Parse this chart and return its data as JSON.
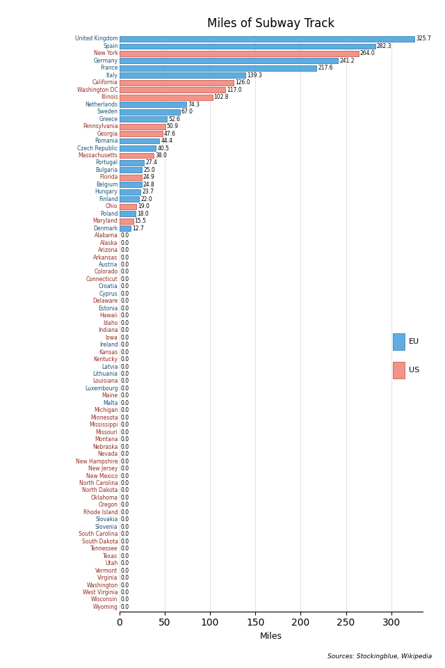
{
  "title": "Miles of Subway Track",
  "xlabel": "Miles",
  "source": "Sources: Stockingblue, Wikipedia",
  "categories": [
    "United Kingdom",
    "Spain",
    "New York",
    "Germany",
    "France",
    "Italy",
    "California",
    "Washington DC",
    "Illinois",
    "Netherlands",
    "Sweden",
    "Greece",
    "Pennsylvania",
    "Georgia",
    "Romania",
    "Czech Republic",
    "Massachusetts",
    "Portugal",
    "Bulgaria",
    "Florida",
    "Belgium",
    "Hungary",
    "Finland",
    "Ohio",
    "Poland",
    "Maryland",
    "Denmark",
    "Alabama",
    "Alaska",
    "Arizona",
    "Arkansas",
    "Austria",
    "Colorado",
    "Connecticut",
    "Croatia",
    "Cyprus",
    "Delaware",
    "Estonia",
    "Hawaii",
    "Idaho",
    "Indiana",
    "Iowa",
    "Ireland",
    "Kansas",
    "Kentucky",
    "Latvia",
    "Lithuania",
    "Louisiana",
    "Luxembourg",
    "Maine",
    "Malta",
    "Michigan",
    "Minnesota",
    "Mississippi",
    "Missouri",
    "Montana",
    "Nebraska",
    "Nevada",
    "New Hampshire",
    "New Jersey",
    "New Mexico",
    "North Carolina",
    "North Dakota",
    "Oklahoma",
    "Oregon",
    "Rhode Island",
    "Slovakia",
    "Slovenia",
    "South Carolina",
    "South Dakota",
    "Tennessee",
    "Texas",
    "Utah",
    "Vermont",
    "Virginia",
    "Washington",
    "West Virginia",
    "Wisconsin",
    "Wyoming"
  ],
  "values": [
    325.7,
    282.3,
    264.0,
    241.2,
    217.6,
    139.3,
    126.0,
    117.0,
    102.8,
    74.3,
    67.0,
    52.6,
    50.9,
    47.6,
    44.4,
    40.5,
    38.0,
    27.4,
    25.0,
    24.9,
    24.8,
    23.7,
    22.0,
    19.0,
    18.0,
    15.5,
    12.7,
    0.0,
    0.0,
    0.0,
    0.0,
    0.0,
    0.0,
    0.0,
    0.0,
    0.0,
    0.0,
    0.0,
    0.0,
    0.0,
    0.0,
    0.0,
    0.0,
    0.0,
    0.0,
    0.0,
    0.0,
    0.0,
    0.0,
    0.0,
    0.0,
    0.0,
    0.0,
    0.0,
    0.0,
    0.0,
    0.0,
    0.0,
    0.0,
    0.0,
    0.0,
    0.0,
    0.0,
    0.0,
    0.0,
    0.0,
    0.0,
    0.0,
    0.0,
    0.0,
    0.0,
    0.0,
    0.0,
    0.0,
    0.0,
    0.0,
    0.0,
    0.0,
    0.0
  ],
  "is_eu": [
    true,
    true,
    false,
    true,
    true,
    true,
    false,
    false,
    false,
    true,
    true,
    true,
    false,
    false,
    true,
    true,
    false,
    true,
    true,
    false,
    true,
    true,
    true,
    false,
    true,
    false,
    true,
    false,
    false,
    false,
    false,
    true,
    false,
    false,
    true,
    true,
    false,
    true,
    false,
    false,
    false,
    false,
    true,
    false,
    false,
    true,
    true,
    false,
    true,
    false,
    true,
    false,
    false,
    false,
    false,
    false,
    false,
    false,
    false,
    false,
    false,
    false,
    false,
    false,
    false,
    false,
    true,
    true,
    false,
    false,
    false,
    false,
    false,
    false,
    false,
    false,
    false,
    false,
    false
  ],
  "eu_color": "#5DADE2",
  "us_color": "#F1948A",
  "eu_color_dark": "#2471A3",
  "us_color_dark": "#CB4335",
  "bar_height": 0.75,
  "xlim": [
    0,
    335
  ],
  "figsize": [
    6.4,
    9.6
  ],
  "dpi": 100
}
